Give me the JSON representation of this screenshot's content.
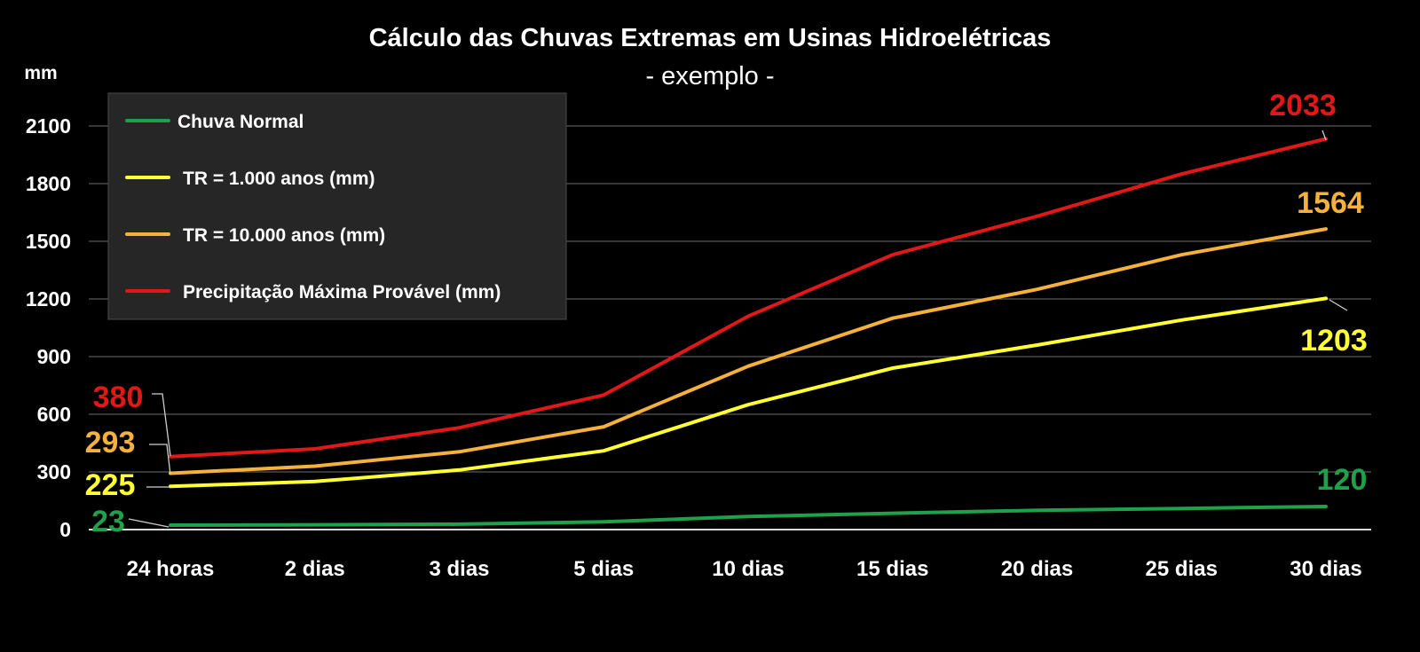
{
  "chart_data": {
    "type": "line",
    "title": "Cálculo das Chuvas Extremas em Usinas Hidroelétricas",
    "subtitle": "- exemplo -",
    "ylabel": "mm",
    "xlabel": "",
    "categories": [
      "24 horas",
      "2 dias",
      "3 dias",
      "5 dias",
      "10 dias",
      "15 dias",
      "20 dias",
      "25 dias",
      "30 dias"
    ],
    "ylim": [
      0,
      2200
    ],
    "yticks": [
      0,
      300,
      600,
      900,
      1200,
      1500,
      1800,
      2100
    ],
    "grid": true,
    "legend_position": "top-left",
    "series": [
      {
        "name": "Chuva Normal",
        "color": "#1fa04a",
        "values": [
          23,
          25,
          28,
          40,
          68,
          85,
          100,
          110,
          120
        ],
        "labels": [
          {
            "index": 0,
            "text": "23",
            "side": "left"
          },
          {
            "index": 8,
            "text": "120",
            "side": "above"
          }
        ]
      },
      {
        "name": "TR = 1.000 anos (mm)",
        "color": "#ffff33",
        "values": [
          225,
          250,
          310,
          410,
          650,
          840,
          960,
          1090,
          1203
        ],
        "labels": [
          {
            "index": 0,
            "text": "225",
            "side": "left"
          },
          {
            "index": 8,
            "text": "1203",
            "side": "below"
          }
        ]
      },
      {
        "name": "TR = 10.000 anos (mm)",
        "color": "#f4b13c",
        "values": [
          293,
          330,
          405,
          535,
          850,
          1100,
          1250,
          1430,
          1564
        ],
        "labels": [
          {
            "index": 0,
            "text": "293",
            "side": "left"
          },
          {
            "index": 8,
            "text": "1564",
            "side": "above"
          }
        ]
      },
      {
        "name": "Precipitação Máxima Provável (mm)",
        "color": "#e01818",
        "values": [
          380,
          420,
          530,
          700,
          1110,
          1430,
          1630,
          1850,
          2033
        ],
        "labels": [
          {
            "index": 0,
            "text": "380",
            "side": "left"
          },
          {
            "index": 8,
            "text": "2033",
            "side": "above"
          }
        ]
      }
    ]
  }
}
